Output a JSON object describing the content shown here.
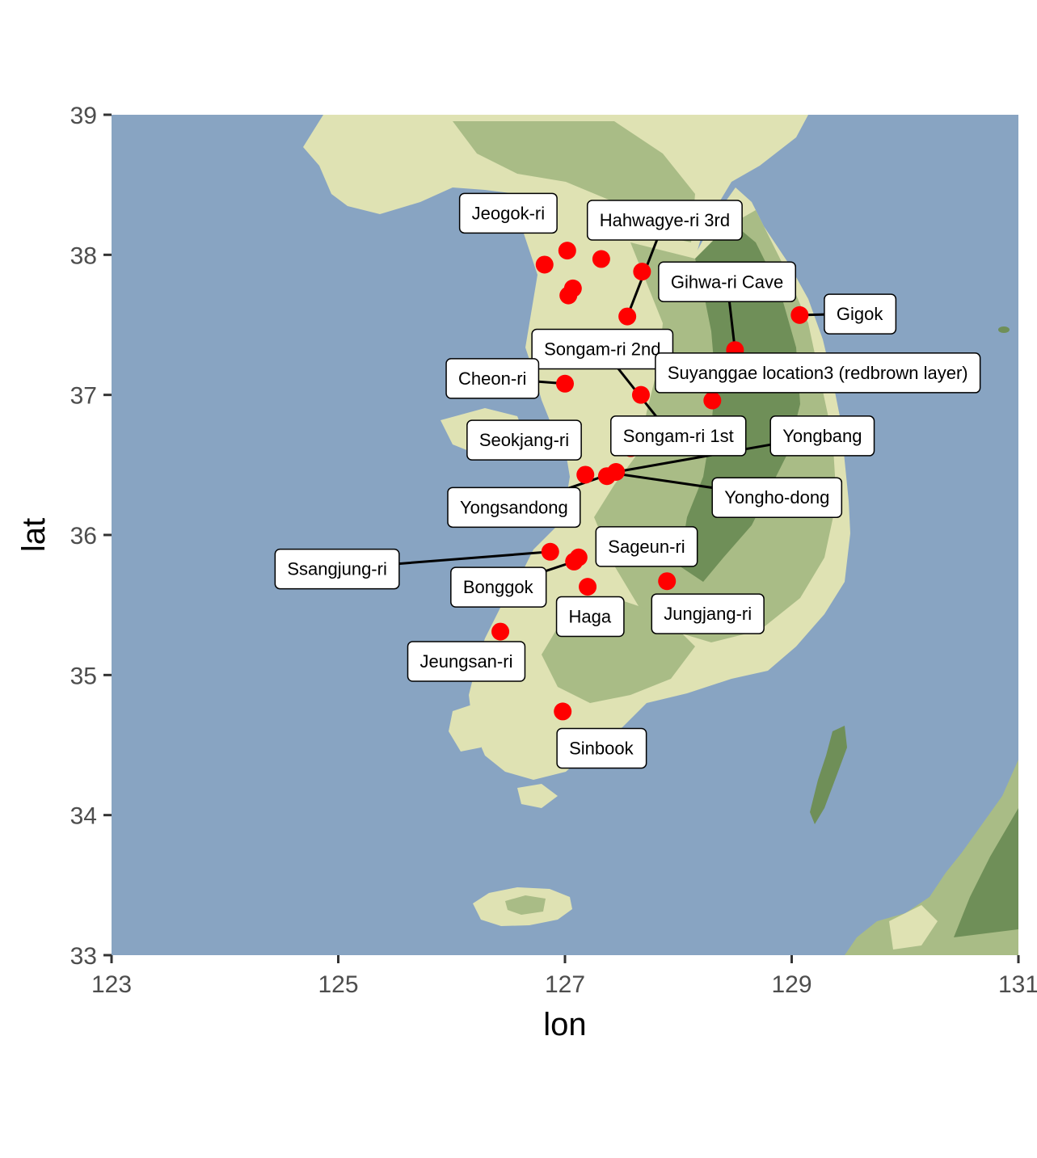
{
  "axes": {
    "xlabel": "lon",
    "ylabel": "lat",
    "xlim": [
      123,
      131
    ],
    "ylim": [
      33,
      39
    ],
    "xticks": [
      "123",
      "125",
      "127",
      "129",
      "131"
    ],
    "yticks": [
      "33",
      "34",
      "35",
      "36",
      "37",
      "38",
      "39"
    ]
  },
  "colors": {
    "sea": "#88a4c2",
    "land_low": "#dfe2b3",
    "land_mid": "#a9bc86",
    "land_high": "#6f8f58",
    "point": "#ff0000",
    "label_bg": "#ffffff",
    "leader": "#000000"
  },
  "chart_data": {
    "type": "scatter",
    "xlabel": "lon",
    "ylabel": "lat",
    "xlim": [
      123,
      131
    ],
    "ylim": [
      33,
      39
    ],
    "grid": false,
    "points": [
      {
        "lon": 126.82,
        "lat": 37.93
      },
      {
        "lon": 127.02,
        "lat": 38.03
      },
      {
        "lon": 127.32,
        "lat": 37.97
      },
      {
        "lon": 127.68,
        "lat": 37.88
      },
      {
        "lon": 127.07,
        "lat": 37.76
      },
      {
        "lon": 127.03,
        "lat": 37.71
      },
      {
        "lon": 127.55,
        "lat": 37.56
      },
      {
        "lon": 129.07,
        "lat": 37.57
      },
      {
        "lon": 128.5,
        "lat": 37.32
      },
      {
        "lon": 127.0,
        "lat": 37.08
      },
      {
        "lon": 127.67,
        "lat": 37.0
      },
      {
        "lon": 128.3,
        "lat": 36.96
      },
      {
        "lon": 127.58,
        "lat": 36.62
      },
      {
        "lon": 127.45,
        "lat": 36.45
      },
      {
        "lon": 127.37,
        "lat": 36.42
      },
      {
        "lon": 127.18,
        "lat": 36.43
      },
      {
        "lon": 126.87,
        "lat": 35.88
      },
      {
        "lon": 127.12,
        "lat": 35.84
      },
      {
        "lon": 127.08,
        "lat": 35.81
      },
      {
        "lon": 127.2,
        "lat": 35.63
      },
      {
        "lon": 127.9,
        "lat": 35.67
      },
      {
        "lon": 126.43,
        "lat": 35.31
      },
      {
        "lon": 126.98,
        "lat": 34.74
      }
    ],
    "labels": [
      {
        "text": "Jeogok-ri",
        "lon": 126.5,
        "lat": 38.3
      },
      {
        "text": "Hahwagye-ri 3rd",
        "lon": 127.88,
        "lat": 38.25,
        "target": [
          127.55,
          37.56
        ]
      },
      {
        "text": "Gihwa-ri Cave",
        "lon": 128.43,
        "lat": 37.81,
        "target": [
          128.5,
          37.32
        ]
      },
      {
        "text": "Gigok",
        "lon": 129.6,
        "lat": 37.58,
        "target": [
          129.07,
          37.57
        ]
      },
      {
        "text": "Songam-ri 2nd",
        "lon": 127.33,
        "lat": 37.33,
        "target": [
          127.85,
          36.8
        ]
      },
      {
        "text": "Suyanggae location3 (redbrown layer)",
        "lon": 129.23,
        "lat": 37.16
      },
      {
        "text": "Cheon-ri",
        "lon": 126.36,
        "lat": 37.12,
        "target": [
          127.0,
          37.08
        ]
      },
      {
        "text": "Seokjang-ri",
        "lon": 126.64,
        "lat": 36.68
      },
      {
        "text": "Songam-ri 1st",
        "lon": 128.0,
        "lat": 36.71
      },
      {
        "text": "Yongbang",
        "lon": 129.27,
        "lat": 36.71,
        "target": [
          127.45,
          36.45
        ]
      },
      {
        "text": "Yongsandong",
        "lon": 126.55,
        "lat": 36.2,
        "target": [
          127.38,
          36.43
        ]
      },
      {
        "text": "Yongho-dong",
        "lon": 128.87,
        "lat": 36.27,
        "target": [
          127.43,
          36.44
        ]
      },
      {
        "text": "Ssangjung-ri",
        "lon": 124.99,
        "lat": 35.76,
        "target": [
          126.87,
          35.88
        ]
      },
      {
        "text": "Sageun-ri",
        "lon": 127.72,
        "lat": 35.92
      },
      {
        "text": "Bonggok",
        "lon": 126.41,
        "lat": 35.63,
        "target": [
          127.08,
          35.81
        ]
      },
      {
        "text": "Jungjang-ri",
        "lon": 128.26,
        "lat": 35.44
      },
      {
        "text": "Haga",
        "lon": 127.22,
        "lat": 35.42
      },
      {
        "text": "Jeungsan-ri",
        "lon": 126.13,
        "lat": 35.1
      },
      {
        "text": "Sinbook",
        "lon": 127.32,
        "lat": 34.48
      }
    ]
  }
}
